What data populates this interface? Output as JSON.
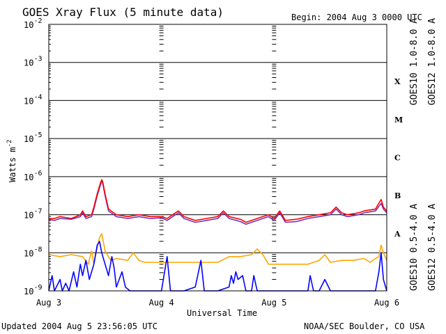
{
  "chart_data": {
    "type": "line",
    "title": "GOES Xray Flux (5 minute data)",
    "begin_label": "Begin:  2004 Aug 3 0000 UTC",
    "xlabel": "Universal Time",
    "ylabel": "Watts m",
    "ylabel_sup": "-2",
    "x_ticks": [
      "Aug 3",
      "Aug 4",
      "Aug 5",
      "Aug 6"
    ],
    "xlim_days": [
      0,
      3
    ],
    "y_scale": "log",
    "ylim": [
      1e-09,
      0.01
    ],
    "y_ticks": [
      {
        "base": "10",
        "exp": "-9"
      },
      {
        "base": "10",
        "exp": "-8"
      },
      {
        "base": "10",
        "exp": "-7"
      },
      {
        "base": "10",
        "exp": "-6"
      },
      {
        "base": "10",
        "exp": "-5"
      },
      {
        "base": "10",
        "exp": "-4"
      },
      {
        "base": "10",
        "exp": "-3"
      },
      {
        "base": "10",
        "exp": "-2"
      }
    ],
    "flare_classes": [
      "A",
      "B",
      "C",
      "M",
      "X"
    ],
    "grid": "horizontal lines at each decade",
    "legend": "right side, vertical text",
    "series": [
      {
        "name": "GOES10 1.0-8.0 A",
        "color": "#7030c0",
        "points": [
          [
            0,
            -7.12
          ],
          [
            0.05,
            -7.15
          ],
          [
            0.1,
            -7.1
          ],
          [
            0.2,
            -7.12
          ],
          [
            0.28,
            -7.05
          ],
          [
            0.3,
            -6.95
          ],
          [
            0.33,
            -7.1
          ],
          [
            0.38,
            -7.05
          ],
          [
            0.4,
            -6.85
          ],
          [
            0.43,
            -6.5
          ],
          [
            0.46,
            -6.2
          ],
          [
            0.47,
            -6.1
          ],
          [
            0.48,
            -6.2
          ],
          [
            0.5,
            -6.5
          ],
          [
            0.53,
            -6.9
          ],
          [
            0.6,
            -7.05
          ],
          [
            0.7,
            -7.1
          ],
          [
            0.8,
            -7.05
          ],
          [
            0.9,
            -7.1
          ],
          [
            1.0,
            -7.08
          ],
          [
            1.05,
            -7.15
          ],
          [
            1.1,
            -7.05
          ],
          [
            1.15,
            -6.95
          ],
          [
            1.2,
            -7.1
          ],
          [
            1.3,
            -7.2
          ],
          [
            1.4,
            -7.15
          ],
          [
            1.5,
            -7.1
          ],
          [
            1.55,
            -6.95
          ],
          [
            1.6,
            -7.1
          ],
          [
            1.7,
            -7.18
          ],
          [
            1.75,
            -7.25
          ],
          [
            1.8,
            -7.2
          ],
          [
            1.9,
            -7.1
          ],
          [
            1.95,
            -7.05
          ],
          [
            2.0,
            -7.15
          ],
          [
            2.05,
            -6.95
          ],
          [
            2.08,
            -7.1
          ],
          [
            2.1,
            -7.2
          ],
          [
            2.2,
            -7.18
          ],
          [
            2.3,
            -7.1
          ],
          [
            2.4,
            -7.05
          ],
          [
            2.5,
            -7.0
          ],
          [
            2.55,
            -6.85
          ],
          [
            2.6,
            -7.0
          ],
          [
            2.65,
            -7.05
          ],
          [
            2.75,
            -7.0
          ],
          [
            2.8,
            -6.95
          ],
          [
            2.9,
            -6.9
          ],
          [
            2.95,
            -6.7
          ],
          [
            2.97,
            -6.85
          ],
          [
            3.0,
            -6.95
          ]
        ]
      },
      {
        "name": "GOES12 1.0-8.0 A",
        "color": "#ff0000",
        "points": [
          [
            0,
            -7.1
          ],
          [
            0.05,
            -7.1
          ],
          [
            0.1,
            -7.05
          ],
          [
            0.2,
            -7.1
          ],
          [
            0.28,
            -7.0
          ],
          [
            0.3,
            -6.9
          ],
          [
            0.33,
            -7.05
          ],
          [
            0.38,
            -7.0
          ],
          [
            0.4,
            -6.8
          ],
          [
            0.43,
            -6.45
          ],
          [
            0.46,
            -6.15
          ],
          [
            0.47,
            -6.08
          ],
          [
            0.48,
            -6.15
          ],
          [
            0.5,
            -6.45
          ],
          [
            0.53,
            -6.85
          ],
          [
            0.6,
            -7.0
          ],
          [
            0.7,
            -7.05
          ],
          [
            0.8,
            -7.0
          ],
          [
            0.9,
            -7.05
          ],
          [
            1.0,
            -7.05
          ],
          [
            1.05,
            -7.1
          ],
          [
            1.1,
            -7.0
          ],
          [
            1.15,
            -6.9
          ],
          [
            1.2,
            -7.05
          ],
          [
            1.3,
            -7.15
          ],
          [
            1.4,
            -7.1
          ],
          [
            1.5,
            -7.05
          ],
          [
            1.55,
            -6.9
          ],
          [
            1.6,
            -7.05
          ],
          [
            1.7,
            -7.12
          ],
          [
            1.75,
            -7.2
          ],
          [
            1.8,
            -7.15
          ],
          [
            1.9,
            -7.05
          ],
          [
            1.95,
            -7.0
          ],
          [
            2.0,
            -7.1
          ],
          [
            2.05,
            -6.9
          ],
          [
            2.08,
            -7.05
          ],
          [
            2.1,
            -7.15
          ],
          [
            2.2,
            -7.12
          ],
          [
            2.3,
            -7.05
          ],
          [
            2.4,
            -7.0
          ],
          [
            2.5,
            -6.95
          ],
          [
            2.55,
            -6.8
          ],
          [
            2.6,
            -6.95
          ],
          [
            2.65,
            -7.0
          ],
          [
            2.75,
            -6.95
          ],
          [
            2.8,
            -6.9
          ],
          [
            2.9,
            -6.85
          ],
          [
            2.95,
            -6.6
          ],
          [
            2.97,
            -6.8
          ],
          [
            3.0,
            -6.9
          ]
        ]
      },
      {
        "name": "GOES10 0.5-4.0 A",
        "color": "#ffa500",
        "points": [
          [
            0,
            -8.05
          ],
          [
            0.1,
            -8.1
          ],
          [
            0.2,
            -8.05
          ],
          [
            0.3,
            -8.1
          ],
          [
            0.35,
            -8.3
          ],
          [
            0.38,
            -7.95
          ],
          [
            0.4,
            -8.3
          ],
          [
            0.42,
            -8.0
          ],
          [
            0.45,
            -7.6
          ],
          [
            0.47,
            -7.5
          ],
          [
            0.5,
            -7.95
          ],
          [
            0.55,
            -8.2
          ],
          [
            0.6,
            -8.15
          ],
          [
            0.7,
            -8.2
          ],
          [
            0.75,
            -8.0
          ],
          [
            0.8,
            -8.2
          ],
          [
            0.85,
            -8.25
          ],
          [
            0.9,
            -8.25
          ],
          [
            1.0,
            -8.25
          ],
          [
            1.1,
            -8.25
          ],
          [
            1.2,
            -8.25
          ],
          [
            1.3,
            -8.25
          ],
          [
            1.4,
            -8.25
          ],
          [
            1.5,
            -8.25
          ],
          [
            1.6,
            -8.1
          ],
          [
            1.7,
            -8.1
          ],
          [
            1.8,
            -8.05
          ],
          [
            1.85,
            -7.9
          ],
          [
            1.9,
            -8.05
          ],
          [
            1.95,
            -8.3
          ],
          [
            2.0,
            -8.3
          ],
          [
            2.1,
            -8.3
          ],
          [
            2.2,
            -8.3
          ],
          [
            2.3,
            -8.3
          ],
          [
            2.4,
            -8.2
          ],
          [
            2.45,
            -8.05
          ],
          [
            2.5,
            -8.25
          ],
          [
            2.6,
            -8.2
          ],
          [
            2.7,
            -8.2
          ],
          [
            2.8,
            -8.15
          ],
          [
            2.85,
            -8.25
          ],
          [
            2.9,
            -8.15
          ],
          [
            2.93,
            -8.1
          ],
          [
            2.95,
            -7.8
          ],
          [
            2.97,
            -8.0
          ],
          [
            3.0,
            -8.2
          ]
        ]
      },
      {
        "name": "GOES12 0.5-4.0 A",
        "color": "#0000ff",
        "points": [
          [
            0,
            -9
          ],
          [
            0.03,
            -8.6
          ],
          [
            0.05,
            -9
          ],
          [
            0.1,
            -8.7
          ],
          [
            0.12,
            -9
          ],
          [
            0.15,
            -8.8
          ],
          [
            0.18,
            -9
          ],
          [
            0.22,
            -8.5
          ],
          [
            0.25,
            -8.9
          ],
          [
            0.28,
            -8.3
          ],
          [
            0.3,
            -8.6
          ],
          [
            0.33,
            -8.2
          ],
          [
            0.36,
            -8.7
          ],
          [
            0.4,
            -8.3
          ],
          [
            0.43,
            -7.8
          ],
          [
            0.45,
            -7.7
          ],
          [
            0.47,
            -8.0
          ],
          [
            0.5,
            -8.3
          ],
          [
            0.53,
            -8.6
          ],
          [
            0.56,
            -8.1
          ],
          [
            0.58,
            -8.4
          ],
          [
            0.6,
            -8.9
          ],
          [
            0.65,
            -8.5
          ],
          [
            0.68,
            -8.9
          ],
          [
            0.72,
            -9
          ],
          [
            0.8,
            -9
          ],
          [
            0.9,
            -9
          ],
          [
            1.0,
            -9
          ],
          [
            1.05,
            -8.1
          ],
          [
            1.08,
            -9
          ],
          [
            1.2,
            -9
          ],
          [
            1.3,
            -8.9
          ],
          [
            1.35,
            -8.2
          ],
          [
            1.38,
            -9
          ],
          [
            1.5,
            -9
          ],
          [
            1.6,
            -8.9
          ],
          [
            1.62,
            -8.6
          ],
          [
            1.64,
            -8.8
          ],
          [
            1.66,
            -8.5
          ],
          [
            1.68,
            -8.7
          ],
          [
            1.72,
            -8.6
          ],
          [
            1.75,
            -9
          ],
          [
            1.8,
            -9
          ],
          [
            1.82,
            -8.6
          ],
          [
            1.85,
            -9
          ],
          [
            1.9,
            -9
          ],
          [
            2.0,
            -9
          ],
          [
            2.1,
            -9
          ],
          [
            2.2,
            -9
          ],
          [
            2.3,
            -9
          ],
          [
            2.32,
            -8.6
          ],
          [
            2.35,
            -9
          ],
          [
            2.4,
            -9
          ],
          [
            2.45,
            -8.7
          ],
          [
            2.5,
            -9
          ],
          [
            2.6,
            -9
          ],
          [
            2.7,
            -9
          ],
          [
            2.8,
            -9
          ],
          [
            2.9,
            -9
          ],
          [
            2.93,
            -8.5
          ],
          [
            2.95,
            -8.0
          ],
          [
            2.97,
            -8.7
          ],
          [
            3.0,
            -9
          ]
        ]
      }
    ]
  },
  "footer": {
    "updated": "Updated 2004 Aug  5 23:56:05 UTC",
    "source": "NOAA/SEC Boulder, CO USA"
  }
}
